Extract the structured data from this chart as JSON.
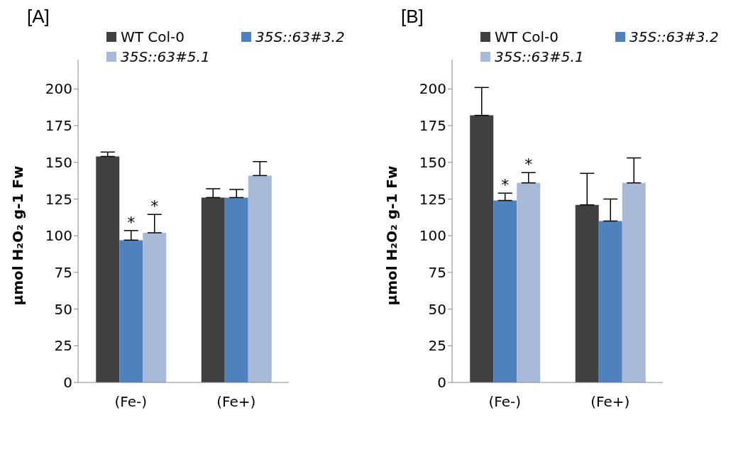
{
  "chart_data": [
    {
      "type": "bar",
      "title": "[A]",
      "ylabel": "µmol H₂O₂ g-1 Fw",
      "categories": [
        "(Fe-)",
        "(Fe+)"
      ],
      "ylim": [
        0,
        220
      ],
      "yticks": [
        0,
        25,
        50,
        75,
        100,
        125,
        150,
        175,
        200
      ],
      "grid": false,
      "legend": "top",
      "series": [
        {
          "name": "WT Col-0",
          "color": "#404040",
          "values": [
            154,
            126
          ],
          "errors": [
            [
              154,
              157
            ],
            [
              126,
              132
            ]
          ]
        },
        {
          "name": "35S::63#3.2",
          "color": "#4f81bd",
          "values": [
            97,
            126
          ],
          "errors": [
            [
              97,
              103.5
            ],
            [
              126,
              131.5
            ]
          ],
          "value_labels": [
            "*",
            null
          ]
        },
        {
          "name": "35S::63#5.1",
          "color": "#a9bad8",
          "values": [
            102,
            141
          ],
          "errors": [
            [
              102,
              114.5
            ],
            [
              141,
              150.5
            ]
          ],
          "value_labels": [
            "*",
            null
          ]
        }
      ]
    },
    {
      "type": "bar",
      "title": "[B]",
      "ylabel": "µmol H₂O₂ g-1 Fw",
      "categories": [
        "(Fe-)",
        "(Fe+)"
      ],
      "ylim": [
        0,
        220
      ],
      "yticks": [
        0,
        25,
        50,
        75,
        100,
        125,
        150,
        175,
        200
      ],
      "grid": false,
      "legend": "top",
      "series": [
        {
          "name": "WT Col-0",
          "color": "#404040",
          "values": [
            182,
            121
          ],
          "errors": [
            [
              182,
              201
            ],
            [
              121,
              142.5
            ]
          ]
        },
        {
          "name": "35S::63#3.2",
          "color": "#4f81bd",
          "values": [
            124,
            110
          ],
          "errors": [
            [
              124,
              129
            ],
            [
              110,
              125
            ]
          ],
          "value_labels": [
            "*",
            null
          ]
        },
        {
          "name": "35S::63#5.1",
          "color": "#a9bad8",
          "values": [
            136,
            136
          ],
          "errors": [
            [
              136,
              143
            ],
            [
              136,
              153
            ]
          ],
          "value_labels": [
            "*",
            null
          ]
        }
      ]
    }
  ]
}
